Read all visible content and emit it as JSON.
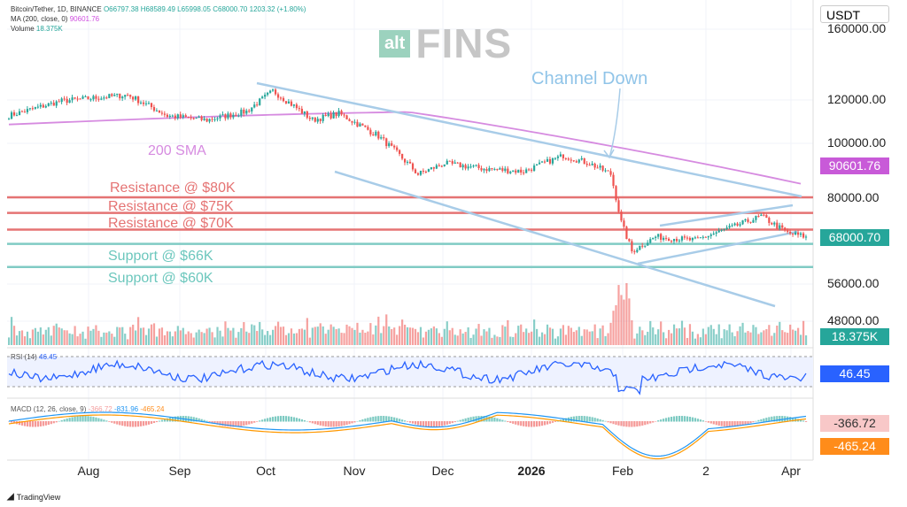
{
  "header": {
    "symbol": "Bitcoin/Tether, 1D, BINANCE",
    "open": "O66797.38",
    "high": "H68589.49",
    "low": "L65998.05",
    "close": "C68000.70",
    "change": "1203.32 (+1.80%)",
    "ma_label": "MA (200, close, 0)",
    "ma_value": "90601.76",
    "volume_label": "Volume",
    "volume_value": "18.375K"
  },
  "watermark": {
    "alt": "alt",
    "fins": "FINS"
  },
  "currency": "USDT",
  "price_axis": [
    "160000.00",
    "120000.00",
    "100000.00",
    "80000.00",
    "56000.00",
    "48000.00"
  ],
  "price_tags": {
    "ma": "90601.76",
    "last": "68000.70",
    "volume": "18.375K",
    "rsi": "46.45",
    "macd": "-366.72",
    "signal": "-465.24"
  },
  "rsi": {
    "label": "RSI (14)",
    "value": "46.45"
  },
  "macd": {
    "label": "MACD (12, 26, close, 9)",
    "hist": "-366.72",
    "macd": "-831.96",
    "signal": "-465.24"
  },
  "time_axis": [
    "Aug",
    "Sep",
    "Oct",
    "Nov",
    "Dec",
    "2026",
    "Feb",
    "2",
    "Apr"
  ],
  "annotations": {
    "channel": "Channel Down",
    "sma": "200 SMA",
    "r80": "Resistance @ $80K",
    "r75": "Resistance @ $75K",
    "r70": "Resistance @ $70K",
    "s66": "Support @ $66K",
    "s60": "Support @ $60K"
  },
  "colors": {
    "up": "#26a69a",
    "down": "#ef5350",
    "ma": "#d68be0",
    "resistance": "#e57373",
    "support": "#80cbc4",
    "channel": "#a8cce8",
    "rsi": "#2962ff",
    "macd": "#2196f3",
    "signal": "#ff9800"
  },
  "footer": "TradingView",
  "chart_data": {
    "type": "candlestick",
    "price_waypoints": [
      [
        0,
        112000
      ],
      [
        20,
        119000
      ],
      [
        45,
        122000
      ],
      [
        60,
        112000
      ],
      [
        75,
        110000
      ],
      [
        90,
        114000
      ],
      [
        100,
        124000
      ],
      [
        115,
        110000
      ],
      [
        125,
        113000
      ],
      [
        140,
        103000
      ],
      [
        155,
        88000
      ],
      [
        165,
        92000
      ],
      [
        180,
        90000
      ],
      [
        195,
        89000
      ],
      [
        210,
        95000
      ],
      [
        220,
        92000
      ],
      [
        228,
        88000
      ],
      [
        232,
        72000
      ],
      [
        236,
        64000
      ],
      [
        245,
        68000
      ],
      [
        260,
        67000
      ],
      [
        275,
        71000
      ],
      [
        285,
        74000
      ],
      [
        295,
        69000
      ],
      [
        302,
        68000
      ]
    ]
  }
}
